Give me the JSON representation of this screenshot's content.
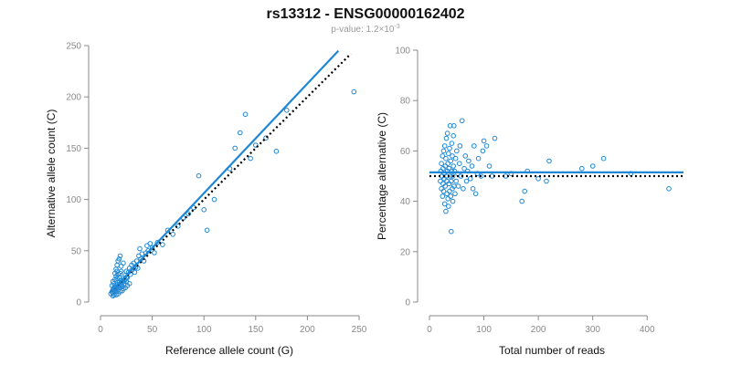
{
  "figure": {
    "title": "rs13312 - ENSG00000162402",
    "subtitle_prefix": "p-value: 1.2×10",
    "subtitle_exponent": "-3"
  },
  "colors": {
    "points": "#1f88d6",
    "fit_line": "#1f88d6",
    "reference_line": "#000000"
  },
  "chart_data": [
    {
      "type": "scatter",
      "xlabel": "Reference allele count (G)",
      "ylabel": "Alternative allele count (C)",
      "xlim": [
        0,
        250
      ],
      "ylim": [
        0,
        250
      ],
      "xticks": [
        0,
        50,
        100,
        150,
        200,
        250
      ],
      "yticks": [
        0,
        50,
        100,
        150,
        200,
        250
      ],
      "fit_line": {
        "x": [
          10,
          230
        ],
        "y": [
          10,
          245
        ]
      },
      "reference_line": {
        "x": [
          10,
          242
        ],
        "y": [
          10,
          242
        ]
      },
      "points": [
        [
          10,
          8
        ],
        [
          11,
          10
        ],
        [
          12,
          9
        ],
        [
          12,
          12
        ],
        [
          13,
          11
        ],
        [
          13,
          14
        ],
        [
          14,
          12
        ],
        [
          14,
          15
        ],
        [
          15,
          10
        ],
        [
          15,
          13
        ],
        [
          16,
          14
        ],
        [
          16,
          17
        ],
        [
          17,
          12
        ],
        [
          17,
          15
        ],
        [
          18,
          16
        ],
        [
          18,
          19
        ],
        [
          19,
          14
        ],
        [
          19,
          18
        ],
        [
          20,
          17
        ],
        [
          20,
          21
        ],
        [
          21,
          15
        ],
        [
          21,
          19
        ],
        [
          22,
          20
        ],
        [
          22,
          23
        ],
        [
          23,
          18
        ],
        [
          23,
          21
        ],
        [
          24,
          22
        ],
        [
          24,
          26
        ],
        [
          25,
          20
        ],
        [
          25,
          24
        ],
        [
          11,
          16
        ],
        [
          12,
          20
        ],
        [
          13,
          18
        ],
        [
          14,
          22
        ],
        [
          15,
          25
        ],
        [
          16,
          23
        ],
        [
          17,
          27
        ],
        [
          18,
          24
        ],
        [
          19,
          28
        ],
        [
          20,
          30
        ],
        [
          12,
          6
        ],
        [
          13,
          7
        ],
        [
          15,
          7
        ],
        [
          17,
          8
        ],
        [
          19,
          10
        ],
        [
          21,
          11
        ],
        [
          22,
          13
        ],
        [
          24,
          14
        ],
        [
          26,
          16
        ],
        [
          28,
          18
        ],
        [
          14,
          28
        ],
        [
          15,
          32
        ],
        [
          16,
          36
        ],
        [
          17,
          40
        ],
        [
          18,
          42
        ],
        [
          19,
          45
        ],
        [
          16,
          30
        ],
        [
          20,
          35
        ],
        [
          22,
          38
        ],
        [
          25,
          30
        ],
        [
          26,
          24
        ],
        [
          27,
          29
        ],
        [
          28,
          33
        ],
        [
          29,
          27
        ],
        [
          30,
          31
        ],
        [
          30,
          36
        ],
        [
          32,
          38
        ],
        [
          33,
          29
        ],
        [
          34,
          34
        ],
        [
          35,
          40
        ],
        [
          36,
          33
        ],
        [
          37,
          45
        ],
        [
          38,
          52
        ],
        [
          39,
          42
        ],
        [
          40,
          47
        ],
        [
          42,
          40
        ],
        [
          44,
          48
        ],
        [
          45,
          55
        ],
        [
          46,
          50
        ],
        [
          48,
          57
        ],
        [
          50,
          53
        ],
        [
          52,
          48
        ],
        [
          55,
          58
        ],
        [
          60,
          56
        ],
        [
          65,
          70
        ],
        [
          70,
          66
        ],
        [
          75,
          74
        ],
        [
          80,
          82
        ],
        [
          85,
          86
        ],
        [
          90,
          92
        ],
        [
          95,
          123
        ],
        [
          100,
          90
        ],
        [
          103,
          70
        ],
        [
          110,
          100
        ],
        [
          125,
          130
        ],
        [
          130,
          150
        ],
        [
          135,
          165
        ],
        [
          140,
          183
        ],
        [
          145,
          140
        ],
        [
          150,
          153
        ],
        [
          160,
          160
        ],
        [
          170,
          147
        ],
        [
          180,
          187
        ],
        [
          245,
          205
        ]
      ]
    },
    {
      "type": "scatter",
      "xlabel": "Total number of reads",
      "ylabel": "Percentage alternative (C)",
      "xlim": [
        0,
        450
      ],
      "ylim": [
        0,
        100
      ],
      "xticks": [
        0,
        100,
        200,
        300,
        400
      ],
      "yticks": [
        0,
        20,
        40,
        60,
        80,
        100
      ],
      "fit_line": {
        "y": 51.5
      },
      "reference_line": {
        "y": 50
      },
      "points": [
        [
          20,
          48
        ],
        [
          21,
          52
        ],
        [
          22,
          45
        ],
        [
          22,
          55
        ],
        [
          23,
          50
        ],
        [
          24,
          42
        ],
        [
          24,
          58
        ],
        [
          25,
          47
        ],
        [
          25,
          53
        ],
        [
          26,
          44
        ],
        [
          26,
          60
        ],
        [
          27,
          49
        ],
        [
          27,
          51
        ],
        [
          28,
          39
        ],
        [
          28,
          62
        ],
        [
          29,
          46
        ],
        [
          29,
          54
        ],
        [
          30,
          36
        ],
        [
          30,
          57
        ],
        [
          31,
          50
        ],
        [
          31,
          65
        ],
        [
          32,
          43
        ],
        [
          32,
          48
        ],
        [
          33,
          52
        ],
        [
          33,
          67
        ],
        [
          34,
          41
        ],
        [
          34,
          55
        ],
        [
          35,
          38
        ],
        [
          35,
          59
        ],
        [
          36,
          47
        ],
        [
          36,
          53
        ],
        [
          37,
          44
        ],
        [
          37,
          61
        ],
        [
          38,
          50
        ],
        [
          38,
          70
        ],
        [
          39,
          42
        ],
        [
          39,
          56
        ],
        [
          40,
          28
        ],
        [
          40,
          48
        ],
        [
          41,
          52
        ],
        [
          41,
          63
        ],
        [
          42,
          45
        ],
        [
          42,
          58
        ],
        [
          43,
          40
        ],
        [
          43,
          50
        ],
        [
          44,
          54
        ],
        [
          44,
          66
        ],
        [
          45,
          46
        ],
        [
          45,
          70
        ],
        [
          46,
          52
        ],
        [
          47,
          43
        ],
        [
          48,
          57
        ],
        [
          49,
          48
        ],
        [
          50,
          60
        ],
        [
          52,
          51
        ],
        [
          53,
          46
        ],
        [
          55,
          55
        ],
        [
          56,
          62
        ],
        [
          58,
          50
        ],
        [
          60,
          72
        ],
        [
          62,
          45
        ],
        [
          64,
          53
        ],
        [
          66,
          58
        ],
        [
          68,
          48
        ],
        [
          70,
          52
        ],
        [
          72,
          56
        ],
        [
          75,
          49
        ],
        [
          78,
          54
        ],
        [
          80,
          45
        ],
        [
          82,
          62
        ],
        [
          85,
          43
        ],
        [
          88,
          51
        ],
        [
          90,
          57
        ],
        [
          95,
          50
        ],
        [
          98,
          60
        ],
        [
          100,
          64
        ],
        [
          105,
          62
        ],
        [
          110,
          54
        ],
        [
          115,
          50
        ],
        [
          120,
          65
        ],
        [
          140,
          50
        ],
        [
          150,
          51
        ],
        [
          170,
          40
        ],
        [
          175,
          44
        ],
        [
          180,
          52
        ],
        [
          200,
          49
        ],
        [
          215,
          48
        ],
        [
          220,
          56
        ],
        [
          280,
          53
        ],
        [
          300,
          54
        ],
        [
          320,
          57
        ],
        [
          370,
          51
        ],
        [
          440,
          45
        ]
      ]
    }
  ]
}
